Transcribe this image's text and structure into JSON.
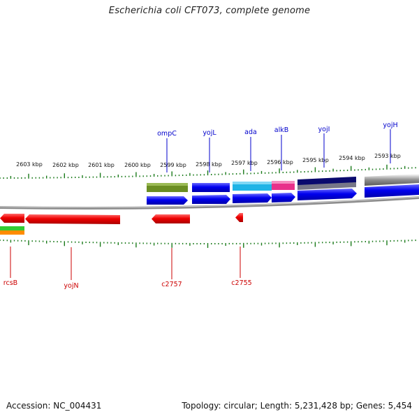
{
  "title": "Escherichia coli CFT073, complete genome",
  "footer": {
    "accession": "Accession: NC_004431",
    "summary": "Topology: circular; Length: 5,231,428 bp; Genes: 5,454"
  },
  "kbp_ticks": [
    "2603 kbp",
    "2602 kbp",
    "2601 kbp",
    "2600 kbp",
    "2599 kbp",
    "2598 kbp",
    "2597 kbp",
    "2596 kbp",
    "2595 kbp",
    "2594 kbp",
    "2593 kbp"
  ],
  "forward_genes": [
    "ompC",
    "yojL",
    "ada",
    "alkB",
    "yojI",
    "yojH"
  ],
  "reverse_genes": [
    "rcsB",
    "yojN",
    "c2757",
    "c2755"
  ],
  "colors": {
    "forward_cds": "#0000ee",
    "reverse_cds": "#ee0000",
    "backbone": "#8c8c8c",
    "tick": "#1a7a1a",
    "olive": "#6b8e23",
    "cyan": "#1fb4e6",
    "magenta": "#e8308a",
    "navy": "#0a0a6e",
    "gray": "#c0c0c0"
  }
}
